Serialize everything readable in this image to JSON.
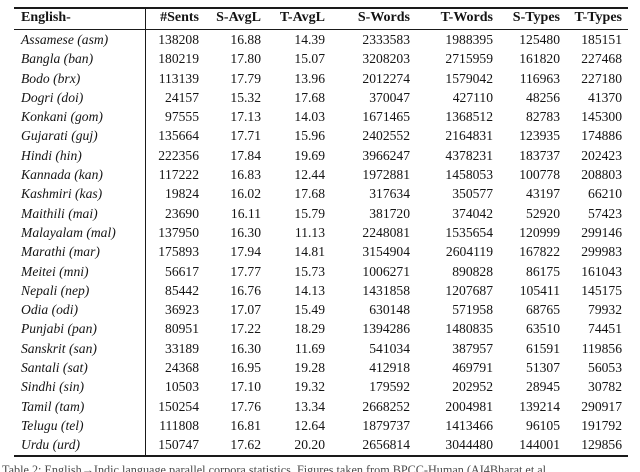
{
  "table": {
    "columns": [
      "English-",
      "#Sents",
      "S-AvgL",
      "T-AvgL",
      "S-Words",
      "T-Words",
      "S-Types",
      "T-Types"
    ],
    "rows": [
      {
        "lang": "Assamese (asm)",
        "values": [
          "138208",
          "16.88",
          "14.39",
          "2333583",
          "1988395",
          "125480",
          "185151"
        ]
      },
      {
        "lang": "Bangla (ban)",
        "values": [
          "180219",
          "17.80",
          "15.07",
          "3208203",
          "2715959",
          "161820",
          "227468"
        ]
      },
      {
        "lang": "Bodo (brx)",
        "values": [
          "113139",
          "17.79",
          "13.96",
          "2012274",
          "1579042",
          "116963",
          "227180"
        ]
      },
      {
        "lang": "Dogri (doi)",
        "values": [
          "24157",
          "15.32",
          "17.68",
          "370047",
          "427110",
          "48256",
          "41370"
        ]
      },
      {
        "lang": "Konkani (gom)",
        "values": [
          "97555",
          "17.13",
          "14.03",
          "1671465",
          "1368512",
          "82783",
          "145300"
        ]
      },
      {
        "lang": "Gujarati (guj)",
        "values": [
          "135664",
          "17.71",
          "15.96",
          "2402552",
          "2164831",
          "123935",
          "174886"
        ]
      },
      {
        "lang": "Hindi (hin)",
        "values": [
          "222356",
          "17.84",
          "19.69",
          "3966247",
          "4378231",
          "183737",
          "202423"
        ]
      },
      {
        "lang": "Kannada (kan)",
        "values": [
          "117222",
          "16.83",
          "12.44",
          "1972881",
          "1458053",
          "100778",
          "208803"
        ]
      },
      {
        "lang": "Kashmiri (kas)",
        "values": [
          "19824",
          "16.02",
          "17.68",
          "317634",
          "350577",
          "43197",
          "66210"
        ]
      },
      {
        "lang": "Maithili (mai)",
        "values": [
          "23690",
          "16.11",
          "15.79",
          "381720",
          "374042",
          "52920",
          "57423"
        ]
      },
      {
        "lang": "Malayalam (mal)",
        "values": [
          "137950",
          "16.30",
          "11.13",
          "2248081",
          "1535654",
          "120999",
          "299146"
        ]
      },
      {
        "lang": "Marathi (mar)",
        "values": [
          "175893",
          "17.94",
          "14.81",
          "3154904",
          "2604119",
          "167822",
          "299983"
        ]
      },
      {
        "lang": "Meitei (mni)",
        "values": [
          "56617",
          "17.77",
          "15.73",
          "1006271",
          "890828",
          "86175",
          "161043"
        ]
      },
      {
        "lang": "Nepali (nep)",
        "values": [
          "85442",
          "16.76",
          "14.13",
          "1431858",
          "1207687",
          "105411",
          "145175"
        ]
      },
      {
        "lang": "Odia (odi)",
        "values": [
          "36923",
          "17.07",
          "15.49",
          "630148",
          "571958",
          "68765",
          "79932"
        ]
      },
      {
        "lang": "Punjabi (pan)",
        "values": [
          "80951",
          "17.22",
          "18.29",
          "1394286",
          "1480835",
          "63510",
          "74451"
        ]
      },
      {
        "lang": "Sanskrit (san)",
        "values": [
          "33189",
          "16.30",
          "11.69",
          "541034",
          "387957",
          "61591",
          "119856"
        ]
      },
      {
        "lang": "Santali (sat)",
        "values": [
          "24368",
          "16.95",
          "19.28",
          "412918",
          "469791",
          "51307",
          "56053"
        ]
      },
      {
        "lang": "Sindhi (sin)",
        "values": [
          "10503",
          "17.10",
          "19.32",
          "179592",
          "202952",
          "28945",
          "30782"
        ]
      },
      {
        "lang": "Tamil (tam)",
        "values": [
          "150254",
          "17.76",
          "13.34",
          "2668252",
          "2004981",
          "139214",
          "290917"
        ]
      },
      {
        "lang": "Telugu (tel)",
        "values": [
          "111808",
          "16.81",
          "12.64",
          "1879737",
          "1413466",
          "96105",
          "191792"
        ]
      },
      {
        "lang": "Urdu (urd)",
        "values": [
          "150747",
          "17.62",
          "20.20",
          "2656814",
          "3044480",
          "144001",
          "129856"
        ]
      }
    ]
  },
  "caption": "Table 2: English→Indic language parallel corpora statistics. Figures taken from BPCC-Human (AI4Bharat et al."
}
